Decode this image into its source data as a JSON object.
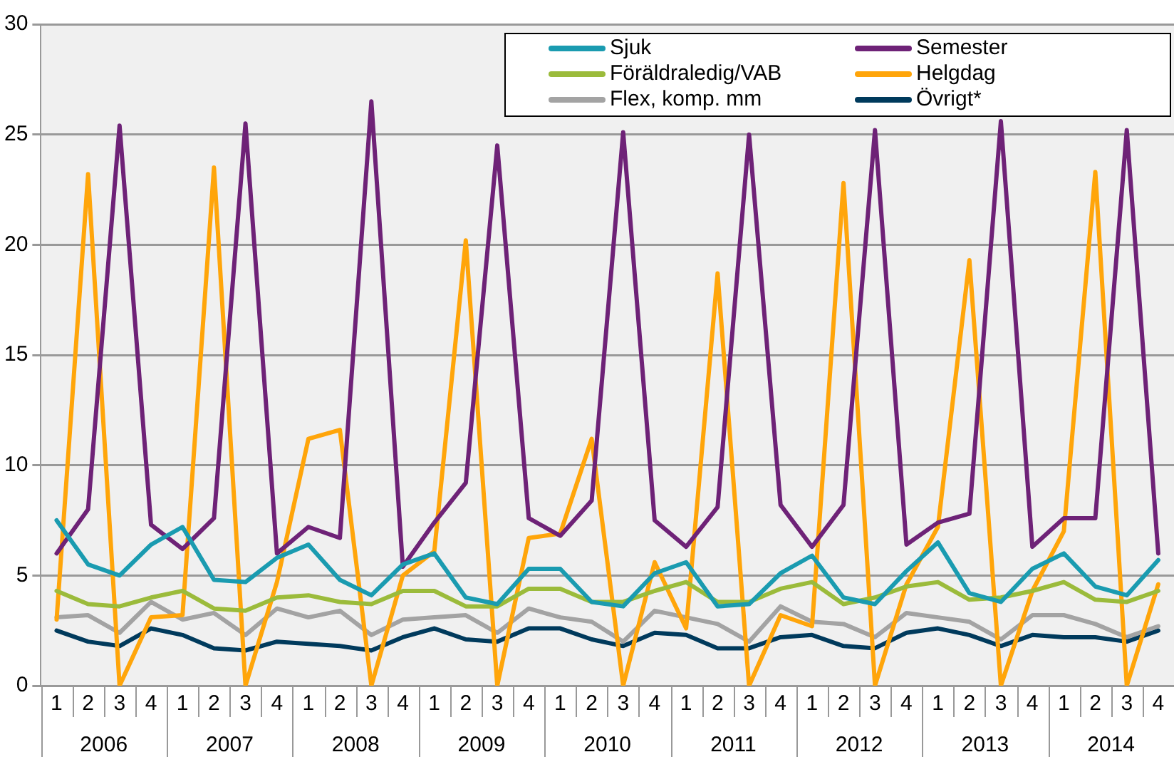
{
  "chart_data": {
    "type": "line",
    "categories": [
      "1",
      "2",
      "3",
      "4",
      "1",
      "2",
      "3",
      "4",
      "1",
      "2",
      "3",
      "4",
      "1",
      "2",
      "3",
      "4",
      "1",
      "2",
      "3",
      "4",
      "1",
      "2",
      "3",
      "4",
      "1",
      "2",
      "3",
      "4",
      "1",
      "2",
      "3",
      "4",
      "1",
      "2",
      "3",
      "4"
    ],
    "annotations": [
      "2006",
      "2007",
      "2008",
      "2009",
      "2010",
      "2011",
      "2012",
      "2013",
      "2014"
    ],
    "series": [
      {
        "name": "Sjuk",
        "color": "#1a9bb0",
        "values": [
          7.5,
          5.5,
          5.0,
          6.4,
          7.2,
          4.8,
          4.7,
          5.8,
          6.4,
          4.8,
          4.1,
          5.5,
          6.0,
          4.0,
          3.7,
          5.3,
          5.3,
          3.8,
          3.6,
          5.1,
          5.6,
          3.6,
          3.7,
          5.1,
          5.9,
          4.0,
          3.7,
          5.2,
          6.5,
          4.2,
          3.8,
          5.3,
          6.0,
          4.5,
          4.1,
          5.7
        ]
      },
      {
        "name": "Semester",
        "color": "#6e2277",
        "values": [
          6.0,
          8.0,
          25.4,
          7.3,
          6.2,
          7.6,
          25.5,
          6.0,
          7.2,
          6.7,
          26.5,
          5.4,
          7.4,
          9.2,
          24.5,
          7.6,
          6.8,
          8.4,
          25.1,
          7.5,
          6.3,
          8.1,
          25.0,
          8.2,
          6.3,
          8.2,
          25.2,
          6.4,
          7.4,
          7.8,
          25.6,
          6.3,
          7.6,
          7.6,
          25.2,
          6.0
        ]
      },
      {
        "name": "Föräldraledig/VAB",
        "color": "#9bbb3b",
        "values": [
          4.3,
          3.7,
          3.6,
          4.0,
          4.3,
          3.5,
          3.4,
          4.0,
          4.1,
          3.8,
          3.7,
          4.3,
          4.3,
          3.6,
          3.6,
          4.4,
          4.4,
          3.8,
          3.8,
          4.3,
          4.7,
          3.8,
          3.8,
          4.4,
          4.7,
          3.7,
          4.0,
          4.5,
          4.7,
          3.9,
          4.0,
          4.3,
          4.7,
          3.9,
          3.8,
          4.3
        ]
      },
      {
        "name": "Helgdag",
        "color": "#ffa50a",
        "values": [
          3.0,
          23.2,
          0,
          3.1,
          3.2,
          23.5,
          0,
          4.7,
          11.2,
          11.6,
          0,
          5.0,
          6.1,
          20.2,
          0,
          6.7,
          6.9,
          11.2,
          0,
          5.6,
          2.6,
          18.7,
          0,
          3.2,
          2.7,
          22.8,
          0,
          4.6,
          7.2,
          19.3,
          0,
          4.3,
          7.0,
          23.3,
          0,
          4.6
        ]
      },
      {
        "name": "Flex, komp. mm",
        "color": "#a3a3a3",
        "values": [
          3.1,
          3.2,
          2.4,
          3.8,
          3.0,
          3.3,
          2.3,
          3.5,
          3.1,
          3.4,
          2.3,
          3.0,
          3.1,
          3.2,
          2.4,
          3.5,
          3.1,
          2.9,
          2.0,
          3.4,
          3.1,
          2.8,
          2.0,
          3.6,
          2.9,
          2.8,
          2.2,
          3.3,
          3.1,
          2.9,
          2.1,
          3.2,
          3.2,
          2.8,
          2.2,
          2.7
        ]
      },
      {
        "name": "Övrigt*",
        "color": "#003a5c",
        "values": [
          2.5,
          2.0,
          1.8,
          2.6,
          2.3,
          1.7,
          1.6,
          2.0,
          1.9,
          1.8,
          1.6,
          2.2,
          2.6,
          2.1,
          2.0,
          2.6,
          2.6,
          2.1,
          1.8,
          2.4,
          2.3,
          1.7,
          1.7,
          2.2,
          2.3,
          1.8,
          1.7,
          2.4,
          2.6,
          2.3,
          1.8,
          2.3,
          2.2,
          2.2,
          2.0,
          2.5
        ]
      }
    ],
    "ylim": [
      0,
      30
    ],
    "yticks": [
      0,
      5,
      10,
      15,
      20,
      25,
      30
    ],
    "grid": "y",
    "legend": "top right",
    "marker": "none",
    "line_style": "solid"
  }
}
